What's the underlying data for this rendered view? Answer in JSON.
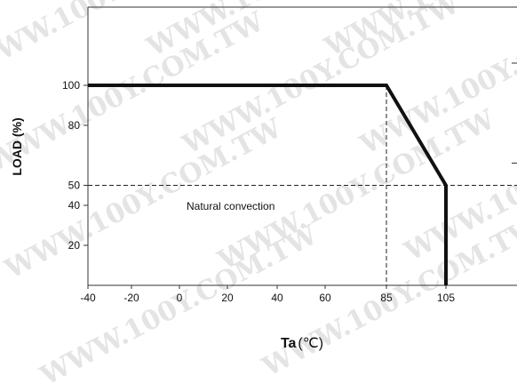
{
  "watermark": "WWW.100Y.COM.TW",
  "chart_data": {
    "type": "line",
    "xlabel": "Ta",
    "xlabel_unit": "(℃)",
    "ylabel": "LOAD (%)",
    "annotation": "Natural convection",
    "x_ticks": [
      "-40",
      "-20",
      "0",
      "20",
      "40",
      "60",
      "85",
      "105"
    ],
    "y_ticks": [
      "100",
      "80",
      "50",
      "40",
      "20"
    ],
    "xlim": [
      -40,
      120
    ],
    "ylim": [
      0,
      100
    ],
    "series": [
      {
        "x": [
          -40,
          85,
          105,
          105
        ],
        "y": [
          100,
          100,
          50,
          0
        ]
      }
    ],
    "reference_lines": [
      {
        "axis": "y",
        "value": 50
      },
      {
        "axis": "x",
        "value": 85
      }
    ],
    "colors": {
      "line": "#111111",
      "axes": "#333333",
      "watermark": "#e4e4e4"
    }
  }
}
